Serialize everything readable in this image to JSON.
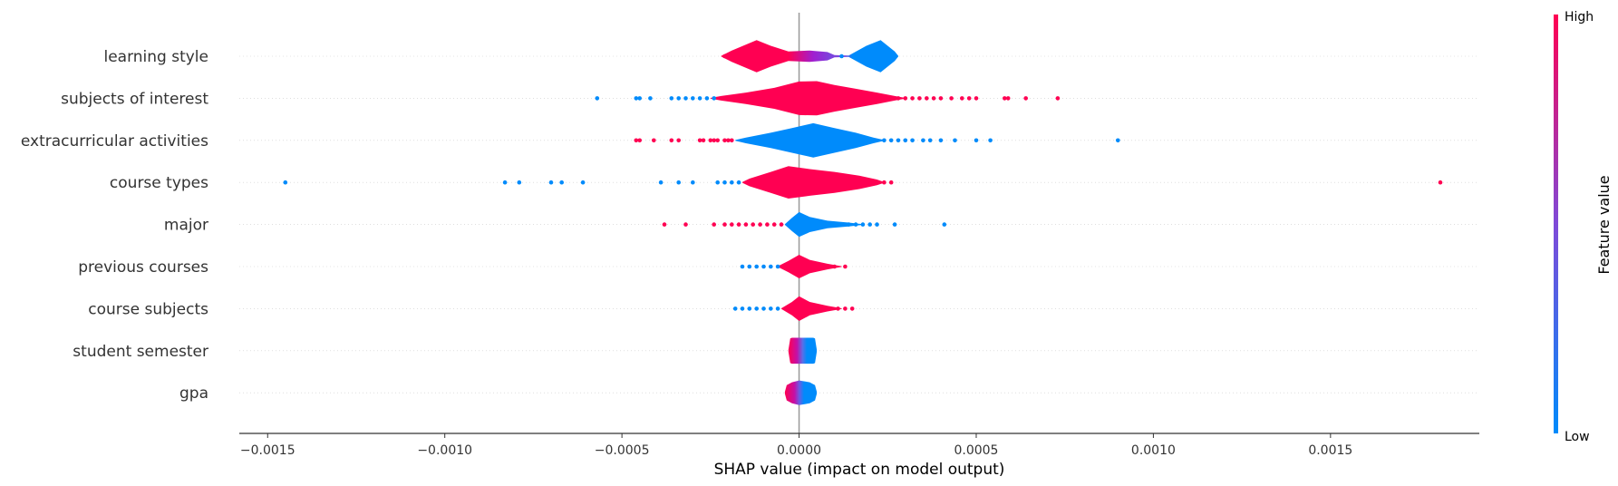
{
  "chart_data": {
    "type": "violin",
    "xlabel": "SHAP value (impact on model output)",
    "xlim": [
      -0.00158,
      0.00192
    ],
    "xticks": [
      {
        "value": -0.0015,
        "label": "−0.0015"
      },
      {
        "value": -0.001,
        "label": "−0.0010"
      },
      {
        "value": -0.0005,
        "label": "−0.0005"
      },
      {
        "value": 0.0,
        "label": "0.0000"
      },
      {
        "value": 0.0005,
        "label": "0.0005"
      },
      {
        "value": 0.001,
        "label": "0.0010"
      },
      {
        "value": 0.0015,
        "label": "0.0015"
      }
    ],
    "colorbar": {
      "title": "Feature value",
      "high_label": "High",
      "low_label": "Low",
      "high_color": "#ff0052",
      "low_color": "#008bfb"
    },
    "features": [
      {
        "name": "learning style",
        "profile": [
          [
            -0.00022,
            0.02
          ],
          [
            -0.00019,
            0.3
          ],
          [
            -0.00012,
            0.85
          ],
          [
            -8e-05,
            0.55
          ],
          [
            -3e-05,
            0.25
          ],
          [
            3e-05,
            0.3
          ],
          [
            8e-05,
            0.22
          ],
          [
            0.0001,
            0.06
          ],
          [
            0.00014,
            0.04
          ],
          [
            0.00019,
            0.55
          ],
          [
            0.00023,
            0.85
          ],
          [
            0.00027,
            0.25
          ],
          [
            0.00028,
            0.02
          ]
        ],
        "gradient": [
          [
            0.0,
            "#ff0052"
          ],
          [
            0.38,
            "#ff0052"
          ],
          [
            0.52,
            "#a01fd0"
          ],
          [
            0.62,
            "#7b44dd"
          ],
          [
            0.7,
            "#7b44dd"
          ],
          [
            0.74,
            "#008bfb"
          ],
          [
            1.0,
            "#008bfb"
          ]
        ],
        "points": [
          {
            "x": -0.00021,
            "c": "#ff0052"
          },
          {
            "x": 9e-05,
            "c": "#7b44dd"
          },
          {
            "x": 0.00012,
            "c": "#008bfb"
          }
        ]
      },
      {
        "name": "subjects of interest",
        "profile": [
          [
            -0.00025,
            0.02
          ],
          [
            -0.00022,
            0.12
          ],
          [
            -0.00015,
            0.3
          ],
          [
            -7e-05,
            0.55
          ],
          [
            0.0,
            0.88
          ],
          [
            5e-05,
            0.9
          ],
          [
            0.0001,
            0.7
          ],
          [
            0.00016,
            0.5
          ],
          [
            0.00022,
            0.3
          ],
          [
            0.00027,
            0.12
          ],
          [
            0.0003,
            0.02
          ]
        ],
        "gradient": [
          [
            0,
            "#ff0052"
          ],
          [
            1,
            "#ff0052"
          ]
        ],
        "points": [
          {
            "x": -0.00057,
            "c": "#008bfb"
          },
          {
            "x": -0.00046,
            "c": "#008bfb"
          },
          {
            "x": -0.00045,
            "c": "#008bfb"
          },
          {
            "x": -0.00042,
            "c": "#008bfb"
          },
          {
            "x": -0.00036,
            "c": "#008bfb"
          },
          {
            "x": -0.00034,
            "c": "#008bfb"
          },
          {
            "x": -0.00032,
            "c": "#008bfb"
          },
          {
            "x": -0.0003,
            "c": "#008bfb"
          },
          {
            "x": -0.00028,
            "c": "#008bfb"
          },
          {
            "x": -0.00026,
            "c": "#008bfb"
          },
          {
            "x": -0.00024,
            "c": "#008bfb"
          },
          {
            "x": 0.00028,
            "c": "#ff0052"
          },
          {
            "x": 0.0003,
            "c": "#ff0052"
          },
          {
            "x": 0.00032,
            "c": "#ff0052"
          },
          {
            "x": 0.00034,
            "c": "#ff0052"
          },
          {
            "x": 0.00036,
            "c": "#ff0052"
          },
          {
            "x": 0.00038,
            "c": "#ff0052"
          },
          {
            "x": 0.0004,
            "c": "#ff0052"
          },
          {
            "x": 0.00043,
            "c": "#ff0052"
          },
          {
            "x": 0.00046,
            "c": "#ff0052"
          },
          {
            "x": 0.00048,
            "c": "#ff0052"
          },
          {
            "x": 0.0005,
            "c": "#ff0052"
          },
          {
            "x": 0.00058,
            "c": "#ff0052"
          },
          {
            "x": 0.00059,
            "c": "#ff0052"
          },
          {
            "x": 0.00064,
            "c": "#ff0052"
          },
          {
            "x": 0.00073,
            "c": "#ff0052"
          }
        ]
      },
      {
        "name": "extracurricular activities",
        "profile": [
          [
            -0.00018,
            0.02
          ],
          [
            -0.00015,
            0.15
          ],
          [
            -8e-05,
            0.4
          ],
          [
            -2e-05,
            0.65
          ],
          [
            4e-05,
            0.9
          ],
          [
            0.0001,
            0.65
          ],
          [
            0.00016,
            0.4
          ],
          [
            0.00021,
            0.15
          ],
          [
            0.00024,
            0.02
          ]
        ],
        "gradient": [
          [
            0,
            "#008bfb"
          ],
          [
            1,
            "#008bfb"
          ]
        ],
        "points": [
          {
            "x": -0.00045,
            "c": "#ff0052"
          },
          {
            "x": -0.00046,
            "c": "#ff0052"
          },
          {
            "x": -0.00041,
            "c": "#ff0052"
          },
          {
            "x": -0.00036,
            "c": "#ff0052"
          },
          {
            "x": -0.00034,
            "c": "#ff0052"
          },
          {
            "x": -0.00028,
            "c": "#ff0052"
          },
          {
            "x": -0.00027,
            "c": "#ff0052"
          },
          {
            "x": -0.00025,
            "c": "#ff0052"
          },
          {
            "x": -0.00024,
            "c": "#ff0052"
          },
          {
            "x": -0.00023,
            "c": "#ff0052"
          },
          {
            "x": -0.00021,
            "c": "#ff0052"
          },
          {
            "x": -0.0002,
            "c": "#ff0052"
          },
          {
            "x": -0.00019,
            "c": "#ff0052"
          },
          {
            "x": 0.00024,
            "c": "#008bfb"
          },
          {
            "x": 0.00026,
            "c": "#008bfb"
          },
          {
            "x": 0.00028,
            "c": "#008bfb"
          },
          {
            "x": 0.0003,
            "c": "#008bfb"
          },
          {
            "x": 0.00032,
            "c": "#008bfb"
          },
          {
            "x": 0.00035,
            "c": "#008bfb"
          },
          {
            "x": 0.00037,
            "c": "#008bfb"
          },
          {
            "x": 0.0004,
            "c": "#008bfb"
          },
          {
            "x": 0.00044,
            "c": "#008bfb"
          },
          {
            "x": 0.0005,
            "c": "#008bfb"
          },
          {
            "x": 0.00054,
            "c": "#008bfb"
          },
          {
            "x": 0.0009,
            "c": "#008bfb"
          }
        ]
      },
      {
        "name": "course types",
        "profile": [
          [
            -0.00016,
            0.02
          ],
          [
            -0.00014,
            0.2
          ],
          [
            -8e-05,
            0.55
          ],
          [
            -3e-05,
            0.85
          ],
          [
            3e-05,
            0.7
          ],
          [
            0.0001,
            0.55
          ],
          [
            0.00017,
            0.35
          ],
          [
            0.00022,
            0.15
          ],
          [
            0.00024,
            0.02
          ]
        ],
        "gradient": [
          [
            0,
            "#ff0052"
          ],
          [
            1,
            "#ff0052"
          ]
        ],
        "points": [
          {
            "x": -0.00145,
            "c": "#008bfb"
          },
          {
            "x": -0.00083,
            "c": "#008bfb"
          },
          {
            "x": -0.00079,
            "c": "#008bfb"
          },
          {
            "x": -0.0007,
            "c": "#008bfb"
          },
          {
            "x": -0.00067,
            "c": "#008bfb"
          },
          {
            "x": -0.00061,
            "c": "#008bfb"
          },
          {
            "x": -0.00039,
            "c": "#008bfb"
          },
          {
            "x": -0.00034,
            "c": "#008bfb"
          },
          {
            "x": -0.0003,
            "c": "#008bfb"
          },
          {
            "x": -0.00023,
            "c": "#008bfb"
          },
          {
            "x": -0.00021,
            "c": "#008bfb"
          },
          {
            "x": -0.00019,
            "c": "#008bfb"
          },
          {
            "x": -0.00017,
            "c": "#008bfb"
          },
          {
            "x": 0.0002,
            "c": "#ff0052"
          },
          {
            "x": 0.00022,
            "c": "#ff0052"
          },
          {
            "x": 0.00024,
            "c": "#ff0052"
          },
          {
            "x": 0.00026,
            "c": "#ff0052"
          },
          {
            "x": 0.00181,
            "c": "#ff0052"
          }
        ]
      },
      {
        "name": "major",
        "profile": [
          [
            -4e-05,
            0.02
          ],
          [
            -2e-05,
            0.35
          ],
          [
            0.0,
            0.65
          ],
          [
            3e-05,
            0.4
          ],
          [
            8e-05,
            0.2
          ],
          [
            0.00014,
            0.1
          ],
          [
            0.00018,
            0.02
          ]
        ],
        "gradient": [
          [
            0,
            "#008bfb"
          ],
          [
            1,
            "#008bfb"
          ]
        ],
        "points": [
          {
            "x": -0.00038,
            "c": "#ff0052"
          },
          {
            "x": -0.00032,
            "c": "#ff0052"
          },
          {
            "x": -0.00024,
            "c": "#ff0052"
          },
          {
            "x": -0.00021,
            "c": "#ff0052"
          },
          {
            "x": -0.00019,
            "c": "#ff0052"
          },
          {
            "x": -0.00017,
            "c": "#ff0052"
          },
          {
            "x": -0.00015,
            "c": "#ff0052"
          },
          {
            "x": -0.00013,
            "c": "#ff0052"
          },
          {
            "x": -0.00011,
            "c": "#ff0052"
          },
          {
            "x": -9e-05,
            "c": "#ff0052"
          },
          {
            "x": -7e-05,
            "c": "#ff0052"
          },
          {
            "x": -5e-05,
            "c": "#ff0052"
          },
          {
            "x": 0.00014,
            "c": "#008bfb"
          },
          {
            "x": 0.00016,
            "c": "#008bfb"
          },
          {
            "x": 0.00018,
            "c": "#008bfb"
          },
          {
            "x": 0.0002,
            "c": "#008bfb"
          },
          {
            "x": 0.00022,
            "c": "#008bfb"
          },
          {
            "x": 0.00027,
            "c": "#008bfb"
          },
          {
            "x": 0.00041,
            "c": "#008bfb"
          }
        ]
      },
      {
        "name": "previous courses",
        "profile": [
          [
            -6e-05,
            0.02
          ],
          [
            -3e-05,
            0.3
          ],
          [
            0.0,
            0.62
          ],
          [
            3e-05,
            0.35
          ],
          [
            8e-05,
            0.15
          ],
          [
            0.00012,
            0.02
          ]
        ],
        "gradient": [
          [
            0,
            "#ff0052"
          ],
          [
            1,
            "#ff0052"
          ]
        ],
        "points": [
          {
            "x": -0.00016,
            "c": "#008bfb"
          },
          {
            "x": -0.00014,
            "c": "#008bfb"
          },
          {
            "x": -0.00012,
            "c": "#008bfb"
          },
          {
            "x": -0.0001,
            "c": "#008bfb"
          },
          {
            "x": -8e-05,
            "c": "#008bfb"
          },
          {
            "x": -6e-05,
            "c": "#008bfb"
          },
          {
            "x": 0.0001,
            "c": "#ff0052"
          },
          {
            "x": 0.00013,
            "c": "#ff0052"
          }
        ]
      },
      {
        "name": "course subjects",
        "profile": [
          [
            -5e-05,
            0.02
          ],
          [
            -2e-05,
            0.35
          ],
          [
            0.0,
            0.65
          ],
          [
            3e-05,
            0.35
          ],
          [
            8e-05,
            0.15
          ],
          [
            0.00012,
            0.02
          ]
        ],
        "gradient": [
          [
            0,
            "#ff0052"
          ],
          [
            1,
            "#ff0052"
          ]
        ],
        "points": [
          {
            "x": -0.00018,
            "c": "#008bfb"
          },
          {
            "x": -0.00016,
            "c": "#008bfb"
          },
          {
            "x": -0.00014,
            "c": "#008bfb"
          },
          {
            "x": -0.00012,
            "c": "#008bfb"
          },
          {
            "x": -0.0001,
            "c": "#008bfb"
          },
          {
            "x": -8e-05,
            "c": "#008bfb"
          },
          {
            "x": -6e-05,
            "c": "#008bfb"
          },
          {
            "x": 0.00011,
            "c": "#ff0052"
          },
          {
            "x": 0.00013,
            "c": "#ff0052"
          },
          {
            "x": 0.00015,
            "c": "#ff0052"
          }
        ]
      },
      {
        "name": "student semester",
        "profile": [
          [
            -3e-05,
            0.05
          ],
          [
            -2.5e-05,
            0.65
          ],
          [
            -2e-05,
            0.68
          ],
          [
            4e-05,
            0.68
          ],
          [
            4.5e-05,
            0.65
          ],
          [
            5e-05,
            0.05
          ]
        ],
        "gradient": [
          [
            0,
            "#ff0052"
          ],
          [
            0.3,
            "#c410a6"
          ],
          [
            0.5,
            "#5a6fe8"
          ],
          [
            0.65,
            "#008bfb"
          ],
          [
            1,
            "#008bfb"
          ]
        ],
        "points": []
      },
      {
        "name": "gpa",
        "profile": [
          [
            -4e-05,
            0.05
          ],
          [
            -3.5e-05,
            0.4
          ],
          [
            -2e-05,
            0.55
          ],
          [
            0.0,
            0.65
          ],
          [
            3e-05,
            0.55
          ],
          [
            4.5e-05,
            0.4
          ],
          [
            5e-05,
            0.05
          ]
        ],
        "gradient": [
          [
            0,
            "#ff0052"
          ],
          [
            0.3,
            "#c410a6"
          ],
          [
            0.45,
            "#6b5ae4"
          ],
          [
            0.6,
            "#008bfb"
          ],
          [
            1,
            "#008bfb"
          ]
        ],
        "points": []
      }
    ]
  }
}
